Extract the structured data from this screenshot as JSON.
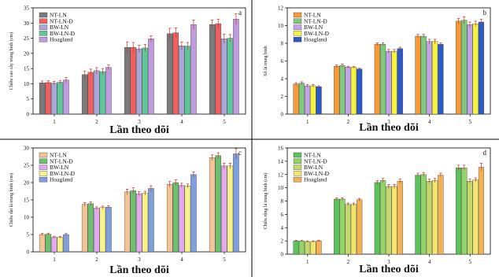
{
  "chart_data": [
    {
      "type": "bar",
      "panel_letter": "a",
      "categories": [
        "1",
        "2",
        "3",
        "4",
        "5"
      ],
      "series": [
        {
          "name": "NT-LN",
          "values": [
            10.3,
            13.0,
            22.0,
            26.5,
            29.5
          ],
          "errors": [
            0.6,
            1.2,
            1.8,
            1.8,
            1.5
          ],
          "color": "#7a7a7a"
        },
        {
          "name": "NT-LN-Đ",
          "values": [
            10.4,
            13.8,
            22.0,
            26.8,
            29.8
          ],
          "errors": [
            0.6,
            1.0,
            1.6,
            1.6,
            1.5
          ],
          "color": "#f06060"
        },
        {
          "name": "BW-LN",
          "values": [
            10.2,
            14.3,
            21.5,
            22.5,
            24.8
          ],
          "errors": [
            0.6,
            1.0,
            1.2,
            1.2,
            1.5
          ],
          "color": "#a7a7d8"
        },
        {
          "name": "BW-LN-Đ",
          "values": [
            10.5,
            14.0,
            21.8,
            22.4,
            25.0
          ],
          "errors": [
            0.6,
            1.0,
            1.2,
            1.2,
            1.2
          ],
          "color": "#5ec79a"
        },
        {
          "name": "Hoagland",
          "values": [
            11.2,
            15.4,
            24.8,
            29.5,
            31.3
          ],
          "errors": [
            0.8,
            0.8,
            1.0,
            1.5,
            1.8
          ],
          "color": "#c09be0"
        }
      ],
      "ylabel": "Chiều cao cây trung bình (cm)",
      "xlabel": "Lần theo dõi",
      "ylim": [
        0,
        35
      ],
      "yticks": [
        0,
        5,
        10,
        15,
        20,
        25,
        30,
        35
      ],
      "legend": "top-left",
      "grid": false
    },
    {
      "type": "bar",
      "panel_letter": "b",
      "categories": [
        "1",
        "2",
        "3",
        "4",
        "5"
      ],
      "series": [
        {
          "name": "NT-LN",
          "values": [
            3.4,
            5.4,
            7.9,
            8.8,
            10.5
          ],
          "errors": [
            0.15,
            0.15,
            0.15,
            0.2,
            0.3
          ],
          "color": "#f79a3a"
        },
        {
          "name": "NT-LN-Đ",
          "values": [
            3.5,
            5.5,
            7.9,
            8.8,
            10.6
          ],
          "errors": [
            0.15,
            0.15,
            0.15,
            0.2,
            0.4
          ],
          "color": "#7fc97f"
        },
        {
          "name": "BW-LN",
          "values": [
            3.2,
            5.3,
            7.1,
            8.2,
            10.1
          ],
          "errors": [
            0.15,
            0.1,
            0.2,
            0.25,
            0.3
          ],
          "color": "#c3a4e8"
        },
        {
          "name": "BW-LN-Đ",
          "values": [
            3.2,
            5.3,
            7.1,
            8.2,
            10.2
          ],
          "errors": [
            0.15,
            0.1,
            0.2,
            0.25,
            0.3
          ],
          "color": "#f5f540"
        },
        {
          "name": "Hoagland",
          "values": [
            3.1,
            5.1,
            7.4,
            7.9,
            10.4
          ],
          "errors": [
            0.1,
            0.1,
            0.15,
            0.15,
            0.3
          ],
          "color": "#2c58c8"
        }
      ],
      "ylabel": "Số lá trung bình",
      "xlabel": "Lần theo dõi",
      "ylim": [
        0,
        12
      ],
      "yticks": [
        0,
        2,
        4,
        6,
        8,
        10,
        12
      ],
      "legend": "top-left",
      "grid": false
    },
    {
      "type": "bar",
      "panel_letter": "c",
      "categories": [
        "1",
        "2",
        "3",
        "4",
        "5"
      ],
      "series": [
        {
          "name": "NT-LN",
          "values": [
            5.0,
            13.7,
            17.3,
            19.5,
            27.2
          ],
          "errors": [
            0.3,
            0.5,
            0.8,
            0.8,
            0.8
          ],
          "color": "#f2c496"
        },
        {
          "name": "NT-LN-Đ",
          "values": [
            5.1,
            13.9,
            17.7,
            20.0,
            27.8
          ],
          "errors": [
            0.3,
            0.5,
            0.8,
            0.8,
            0.8
          ],
          "color": "#6cc070"
        },
        {
          "name": "BW-LN",
          "values": [
            4.2,
            12.6,
            16.8,
            19.2,
            24.8
          ],
          "errors": [
            0.3,
            0.4,
            0.6,
            0.6,
            0.8
          ],
          "color": "#e3a9ee"
        },
        {
          "name": "BW-LN-Đ",
          "values": [
            4.2,
            12.8,
            16.9,
            19.0,
            24.8
          ],
          "errors": [
            0.3,
            0.4,
            0.6,
            0.6,
            0.8
          ],
          "color": "#f7f28a"
        },
        {
          "name": "Hoagland",
          "values": [
            5.0,
            12.9,
            18.3,
            22.3,
            28.3
          ],
          "errors": [
            0.3,
            0.4,
            0.8,
            0.8,
            1.5
          ],
          "color": "#7f9fdc"
        }
      ],
      "ylabel": "Chiều dài lá trung bình (cm)",
      "xlabel": "Lần theo dõi",
      "ylim": [
        0,
        30
      ],
      "yticks": [
        0,
        5,
        10,
        15,
        20,
        25,
        30
      ],
      "legend": "top-left",
      "grid": false
    },
    {
      "type": "bar",
      "panel_letter": "d",
      "categories": [
        "1",
        "2",
        "3",
        "4",
        "5"
      ],
      "series": [
        {
          "name": "NT-LN",
          "values": [
            2.0,
            8.3,
            10.8,
            11.9,
            13.0
          ],
          "errors": [
            0.1,
            0.2,
            0.3,
            0.3,
            0.4
          ],
          "color": "#5cc25c"
        },
        {
          "name": "NT-LN-Đ",
          "values": [
            2.0,
            8.3,
            11.1,
            12.0,
            13.0
          ],
          "errors": [
            0.1,
            0.2,
            0.3,
            0.3,
            0.4
          ],
          "color": "#92d46a"
        },
        {
          "name": "BW-LN",
          "values": [
            1.9,
            7.5,
            10.2,
            11.0,
            11.0
          ],
          "errors": [
            0.1,
            0.2,
            0.3,
            0.3,
            0.3
          ],
          "color": "#c4d86e"
        },
        {
          "name": "BW-LN-Đ",
          "values": [
            1.9,
            7.5,
            10.2,
            11.1,
            11.2
          ],
          "errors": [
            0.1,
            0.2,
            0.3,
            0.3,
            0.3
          ],
          "color": "#f3e670"
        },
        {
          "name": "Hoagland",
          "values": [
            2.0,
            8.2,
            11.0,
            11.9,
            13.1
          ],
          "errors": [
            0.1,
            0.2,
            0.3,
            0.3,
            0.6
          ],
          "color": "#f3b156"
        }
      ],
      "ylabel": "Chiều rộng lá trung bình (cm)",
      "xlabel": "Lần theo dõi",
      "ylim": [
        0,
        16
      ],
      "yticks": [
        0,
        2,
        4,
        6,
        8,
        10,
        12,
        14,
        16
      ],
      "legend": "top-left",
      "grid": false
    }
  ]
}
